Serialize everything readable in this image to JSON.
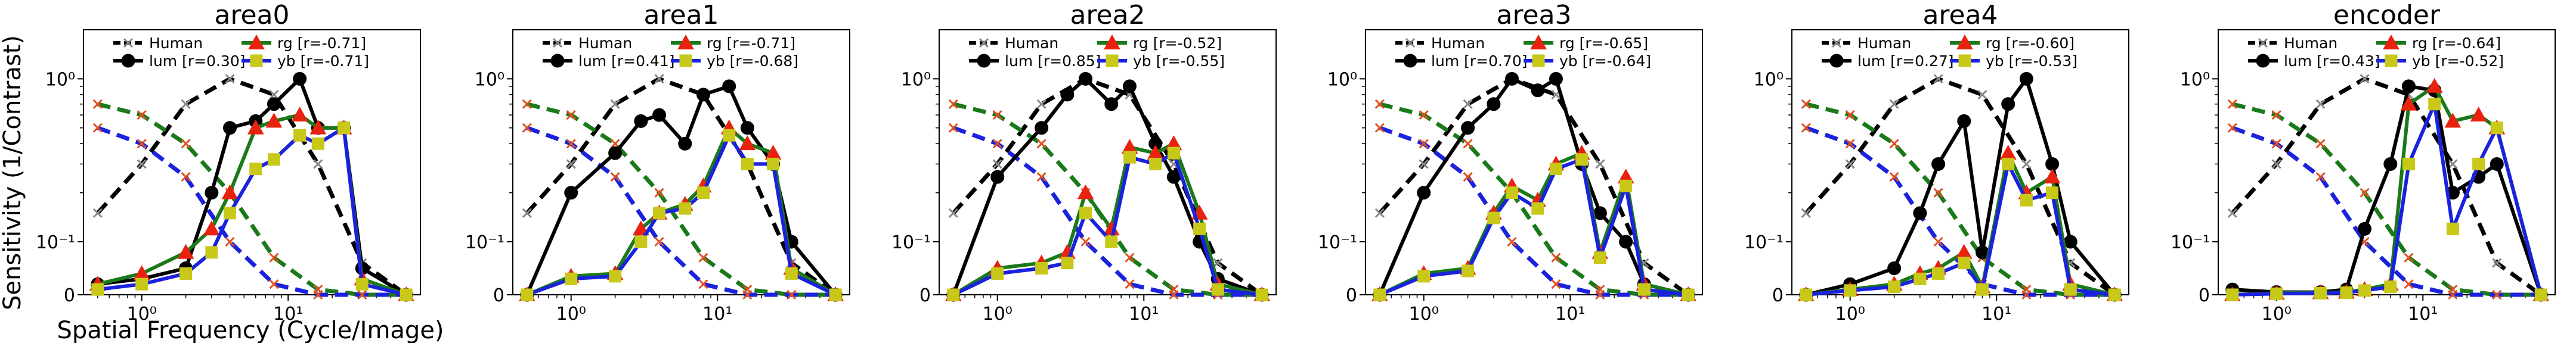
{
  "figure": {
    "ylabel": "Sensitivity (1/Contrast)",
    "xlabel": "Spatial Frequency (Cycle/Image)",
    "ytick_labels": [
      "0",
      "10⁻¹",
      "10⁰"
    ],
    "xtick_labels": [
      "10⁰",
      "10¹"
    ]
  },
  "chart_data": [
    {
      "type": "line",
      "title": "area0",
      "x": [
        0.5,
        1,
        2,
        4,
        8,
        16,
        32,
        64
      ],
      "xscale": "log",
      "yscale": "symlog",
      "ylim": [
        0,
        2.0
      ],
      "legend": "top-center",
      "series": [
        {
          "name": "Human",
          "label": "Human",
          "color": "#000000",
          "marker": "x",
          "dash": "dashed",
          "values": [
            0.15,
            0.3,
            0.7,
            1.0,
            0.8,
            0.3,
            0.06,
            0.0
          ]
        },
        {
          "name": "Human rg",
          "label": "",
          "color": "#1a7a1a",
          "marker": "x",
          "dash": "dashed",
          "values": [
            0.7,
            0.6,
            0.4,
            0.2,
            0.07,
            0.01,
            0.0,
            0.0
          ]
        },
        {
          "name": "Human yb",
          "label": "",
          "color": "#1a22dd",
          "marker": "x",
          "dash": "dashed",
          "values": [
            0.5,
            0.4,
            0.25,
            0.1,
            0.02,
            0.0,
            0.0,
            0.0
          ]
        },
        {
          "name": "lum",
          "label": "lum [r=0.30]",
          "color": "#000000",
          "marker": "circle",
          "dash": "solid",
          "x": [
            0.5,
            1,
            2,
            3,
            4,
            6,
            8,
            12,
            16,
            24,
            32,
            64
          ],
          "values": [
            0.02,
            0.03,
            0.05,
            0.2,
            0.5,
            0.55,
            0.7,
            1.0,
            0.5,
            0.5,
            0.05,
            0.0
          ]
        },
        {
          "name": "rg",
          "label": "rg     [r=-0.71]",
          "color": "#1a7a1a",
          "marker": "triangle",
          "dash": "solid",
          "x": [
            0.5,
            1,
            2,
            3,
            4,
            6,
            8,
            12,
            16,
            24,
            32,
            64
          ],
          "values": [
            0.02,
            0.04,
            0.08,
            0.12,
            0.2,
            0.5,
            0.55,
            0.6,
            0.5,
            0.5,
            0.03,
            0.0
          ]
        },
        {
          "name": "yb",
          "label": "yb     [r=-0.71]",
          "color": "#1a22dd",
          "marker": "square",
          "dash": "solid",
          "x": [
            0.5,
            1,
            2,
            3,
            4,
            6,
            8,
            12,
            16,
            24,
            32,
            64
          ],
          "values": [
            0.01,
            0.02,
            0.04,
            0.08,
            0.15,
            0.28,
            0.32,
            0.45,
            0.4,
            0.5,
            0.02,
            0.0
          ]
        }
      ]
    },
    {
      "type": "line",
      "title": "area1",
      "x": [
        0.5,
        1,
        2,
        4,
        8,
        16,
        32,
        64
      ],
      "xscale": "log",
      "yscale": "symlog",
      "ylim": [
        0,
        2.0
      ],
      "legend": "top-center",
      "series": [
        {
          "name": "Human",
          "label": "Human",
          "color": "#000000",
          "marker": "x",
          "dash": "dashed",
          "values": [
            0.15,
            0.3,
            0.7,
            1.0,
            0.8,
            0.3,
            0.06,
            0.0
          ]
        },
        {
          "name": "Human rg",
          "label": "",
          "color": "#1a7a1a",
          "marker": "x",
          "dash": "dashed",
          "values": [
            0.7,
            0.6,
            0.4,
            0.2,
            0.07,
            0.01,
            0.0,
            0.0
          ]
        },
        {
          "name": "Human yb",
          "label": "",
          "color": "#1a22dd",
          "marker": "x",
          "dash": "dashed",
          "values": [
            0.5,
            0.4,
            0.25,
            0.1,
            0.02,
            0.0,
            0.0,
            0.0
          ]
        },
        {
          "name": "lum",
          "label": "lum [r=0.41]",
          "color": "#000000",
          "marker": "circle",
          "dash": "solid",
          "x": [
            0.5,
            1,
            2,
            3,
            4,
            6,
            8,
            12,
            16,
            24,
            32,
            64
          ],
          "values": [
            0.0,
            0.2,
            0.35,
            0.55,
            0.6,
            0.4,
            0.8,
            0.9,
            0.5,
            0.3,
            0.1,
            0.0
          ]
        },
        {
          "name": "rg",
          "label": "rg     [r=-0.71]",
          "color": "#1a7a1a",
          "marker": "triangle",
          "dash": "solid",
          "x": [
            0.5,
            1,
            2,
            3,
            4,
            6,
            8,
            12,
            16,
            24,
            32,
            64
          ],
          "values": [
            0.0,
            0.035,
            0.04,
            0.12,
            0.15,
            0.17,
            0.22,
            0.5,
            0.4,
            0.35,
            0.05,
            0.0
          ]
        },
        {
          "name": "yb",
          "label": "yb     [r=-0.68]",
          "color": "#1a22dd",
          "marker": "square",
          "dash": "solid",
          "x": [
            0.5,
            1,
            2,
            3,
            4,
            6,
            8,
            12,
            16,
            24,
            32,
            64
          ],
          "values": [
            0.0,
            0.03,
            0.035,
            0.1,
            0.15,
            0.16,
            0.2,
            0.45,
            0.3,
            0.3,
            0.04,
            0.0
          ]
        }
      ]
    },
    {
      "type": "line",
      "title": "area2",
      "x": [
        0.5,
        1,
        2,
        4,
        8,
        16,
        32,
        64
      ],
      "xscale": "log",
      "yscale": "symlog",
      "ylim": [
        0,
        2.0
      ],
      "legend": "top-center",
      "series": [
        {
          "name": "Human",
          "label": "Human",
          "color": "#000000",
          "marker": "x",
          "dash": "dashed",
          "values": [
            0.15,
            0.3,
            0.7,
            1.0,
            0.8,
            0.3,
            0.06,
            0.0
          ]
        },
        {
          "name": "Human rg",
          "label": "",
          "color": "#1a7a1a",
          "marker": "x",
          "dash": "dashed",
          "values": [
            0.7,
            0.6,
            0.4,
            0.2,
            0.07,
            0.01,
            0.0,
            0.0
          ]
        },
        {
          "name": "Human yb",
          "label": "",
          "color": "#1a22dd",
          "marker": "x",
          "dash": "dashed",
          "values": [
            0.5,
            0.4,
            0.25,
            0.1,
            0.02,
            0.0,
            0.0,
            0.0
          ]
        },
        {
          "name": "lum",
          "label": "lum [r=0.85]",
          "color": "#000000",
          "marker": "circle",
          "dash": "solid",
          "x": [
            0.5,
            1,
            2,
            3,
            4,
            6,
            8,
            12,
            16,
            24,
            32,
            64
          ],
          "values": [
            0.0,
            0.25,
            0.5,
            0.8,
            1.0,
            0.7,
            0.9,
            0.4,
            0.25,
            0.1,
            0.03,
            0.0
          ]
        },
        {
          "name": "rg",
          "label": "rg     [r=-0.52]",
          "color": "#1a7a1a",
          "marker": "triangle",
          "dash": "solid",
          "x": [
            0.5,
            1,
            2,
            3,
            4,
            6,
            8,
            12,
            16,
            24,
            32,
            64
          ],
          "values": [
            0.0,
            0.05,
            0.06,
            0.08,
            0.2,
            0.12,
            0.38,
            0.35,
            0.4,
            0.15,
            0.02,
            0.0
          ]
        },
        {
          "name": "yb",
          "label": "yb     [r=-0.55]",
          "color": "#1a22dd",
          "marker": "square",
          "dash": "solid",
          "x": [
            0.5,
            1,
            2,
            3,
            4,
            6,
            8,
            12,
            16,
            24,
            32,
            64
          ],
          "values": [
            0.0,
            0.04,
            0.05,
            0.06,
            0.15,
            0.1,
            0.33,
            0.3,
            0.35,
            0.12,
            0.01,
            0.0
          ]
        }
      ]
    },
    {
      "type": "line",
      "title": "area3",
      "x": [
        0.5,
        1,
        2,
        4,
        8,
        16,
        32,
        64
      ],
      "xscale": "log",
      "yscale": "symlog",
      "ylim": [
        0,
        2.0
      ],
      "legend": "top-center",
      "series": [
        {
          "name": "Human",
          "label": "Human",
          "color": "#000000",
          "marker": "x",
          "dash": "dashed",
          "values": [
            0.15,
            0.3,
            0.7,
            1.0,
            0.8,
            0.3,
            0.06,
            0.0
          ]
        },
        {
          "name": "Human rg",
          "label": "",
          "color": "#1a7a1a",
          "marker": "x",
          "dash": "dashed",
          "values": [
            0.7,
            0.6,
            0.4,
            0.2,
            0.07,
            0.01,
            0.0,
            0.0
          ]
        },
        {
          "name": "Human yb",
          "label": "",
          "color": "#1a22dd",
          "marker": "x",
          "dash": "dashed",
          "values": [
            0.5,
            0.4,
            0.25,
            0.1,
            0.02,
            0.0,
            0.0,
            0.0
          ]
        },
        {
          "name": "lum",
          "label": "lum [r=0.70]",
          "color": "#000000",
          "marker": "circle",
          "dash": "solid",
          "x": [
            0.5,
            1,
            2,
            3,
            4,
            6,
            8,
            12,
            16,
            24,
            32,
            64
          ],
          "values": [
            0.0,
            0.2,
            0.5,
            0.7,
            1.0,
            0.85,
            1.0,
            0.3,
            0.15,
            0.1,
            0.02,
            0.0
          ]
        },
        {
          "name": "rg",
          "label": "rg     [r=-0.65]",
          "color": "#1a7a1a",
          "marker": "triangle",
          "dash": "solid",
          "x": [
            0.5,
            1,
            2,
            3,
            4,
            6,
            8,
            12,
            16,
            24,
            32,
            64
          ],
          "values": [
            0.0,
            0.04,
            0.05,
            0.15,
            0.22,
            0.18,
            0.3,
            0.35,
            0.08,
            0.25,
            0.02,
            0.0
          ]
        },
        {
          "name": "yb",
          "label": "yb     [r=-0.64]",
          "color": "#1a22dd",
          "marker": "square",
          "dash": "solid",
          "x": [
            0.5,
            1,
            2,
            3,
            4,
            6,
            8,
            12,
            16,
            24,
            32,
            64
          ],
          "values": [
            0.0,
            0.035,
            0.045,
            0.14,
            0.2,
            0.16,
            0.28,
            0.32,
            0.07,
            0.22,
            0.01,
            0.0
          ]
        }
      ]
    },
    {
      "type": "line",
      "title": "area4",
      "x": [
        0.5,
        1,
        2,
        4,
        8,
        16,
        32,
        64
      ],
      "xscale": "log",
      "yscale": "symlog",
      "ylim": [
        0,
        2.0
      ],
      "legend": "top-center",
      "series": [
        {
          "name": "Human",
          "label": "Human",
          "color": "#000000",
          "marker": "x",
          "dash": "dashed",
          "values": [
            0.15,
            0.3,
            0.7,
            1.0,
            0.8,
            0.3,
            0.06,
            0.0
          ]
        },
        {
          "name": "Human rg",
          "label": "",
          "color": "#1a7a1a",
          "marker": "x",
          "dash": "dashed",
          "values": [
            0.7,
            0.6,
            0.4,
            0.2,
            0.07,
            0.01,
            0.0,
            0.0
          ]
        },
        {
          "name": "Human yb",
          "label": "",
          "color": "#1a22dd",
          "marker": "x",
          "dash": "dashed",
          "values": [
            0.5,
            0.4,
            0.25,
            0.1,
            0.02,
            0.0,
            0.0,
            0.0
          ]
        },
        {
          "name": "lum",
          "label": "lum [r=0.27]",
          "color": "#000000",
          "marker": "circle",
          "dash": "solid",
          "x": [
            0.5,
            1,
            2,
            3,
            4,
            6,
            8,
            12,
            16,
            24,
            32,
            64
          ],
          "values": [
            0.0,
            0.02,
            0.05,
            0.15,
            0.3,
            0.55,
            0.08,
            0.7,
            1.0,
            0.3,
            0.1,
            0.0
          ]
        },
        {
          "name": "rg",
          "label": "rg     [r=-0.60]",
          "color": "#1a7a1a",
          "marker": "triangle",
          "dash": "solid",
          "x": [
            0.5,
            1,
            2,
            3,
            4,
            6,
            8,
            12,
            16,
            24,
            32,
            64
          ],
          "values": [
            0.0,
            0.01,
            0.02,
            0.04,
            0.05,
            0.08,
            0.015,
            0.35,
            0.2,
            0.25,
            0.02,
            0.0
          ]
        },
        {
          "name": "yb",
          "label": "yb     [r=-0.53]",
          "color": "#1a22dd",
          "marker": "square",
          "dash": "solid",
          "x": [
            0.5,
            1,
            2,
            3,
            4,
            6,
            8,
            12,
            16,
            24,
            32,
            64
          ],
          "values": [
            0.0,
            0.008,
            0.015,
            0.03,
            0.04,
            0.06,
            0.01,
            0.3,
            0.18,
            0.2,
            0.01,
            0.0
          ]
        }
      ]
    },
    {
      "type": "line",
      "title": "encoder",
      "x": [
        0.5,
        1,
        2,
        4,
        8,
        16,
        32,
        64
      ],
      "xscale": "log",
      "yscale": "symlog",
      "ylim": [
        0,
        2.0
      ],
      "legend": "top-center",
      "series": [
        {
          "name": "Human",
          "label": "Human",
          "color": "#000000",
          "marker": "x",
          "dash": "dashed",
          "values": [
            0.15,
            0.3,
            0.7,
            1.0,
            0.8,
            0.3,
            0.06,
            0.0
          ]
        },
        {
          "name": "Human rg",
          "label": "",
          "color": "#1a7a1a",
          "marker": "x",
          "dash": "dashed",
          "values": [
            0.7,
            0.6,
            0.4,
            0.2,
            0.07,
            0.01,
            0.0,
            0.0
          ]
        },
        {
          "name": "Human yb",
          "label": "",
          "color": "#1a22dd",
          "marker": "x",
          "dash": "dashed",
          "values": [
            0.5,
            0.4,
            0.25,
            0.1,
            0.02,
            0.0,
            0.0,
            0.0
          ]
        },
        {
          "name": "lum",
          "label": "lum [r=0.43]",
          "color": "#000000",
          "marker": "circle",
          "dash": "solid",
          "x": [
            0.5,
            1,
            2,
            3,
            4,
            6,
            8,
            12,
            16,
            24,
            32,
            64
          ],
          "values": [
            0.01,
            0.005,
            0.005,
            0.01,
            0.12,
            0.3,
            0.9,
            0.85,
            0.2,
            0.25,
            0.3,
            0.0
          ]
        },
        {
          "name": "rg",
          "label": "rg     [r=-0.64]",
          "color": "#1a7a1a",
          "marker": "triangle",
          "dash": "solid",
          "x": [
            0.5,
            1,
            2,
            3,
            4,
            6,
            8,
            12,
            16,
            24,
            32,
            64
          ],
          "values": [
            0.0,
            0.003,
            0.004,
            0.005,
            0.01,
            0.02,
            0.7,
            0.9,
            0.55,
            0.6,
            0.5,
            0.0
          ]
        },
        {
          "name": "yb",
          "label": "yb     [r=-0.52]",
          "color": "#1a22dd",
          "marker": "square",
          "dash": "solid",
          "x": [
            0.5,
            1,
            2,
            3,
            4,
            6,
            8,
            12,
            16,
            24,
            32,
            64
          ],
          "values": [
            0.0,
            0.002,
            0.003,
            0.004,
            0.008,
            0.015,
            0.3,
            0.7,
            0.12,
            0.3,
            0.5,
            0.0
          ]
        }
      ]
    }
  ]
}
